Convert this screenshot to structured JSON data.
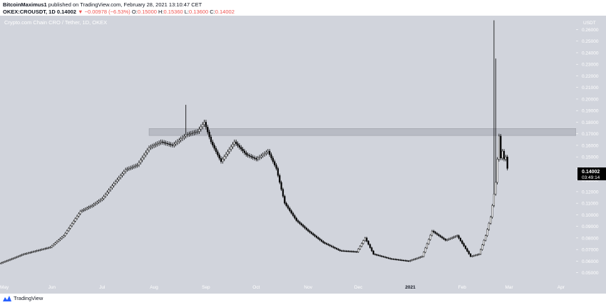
{
  "header": {
    "author": "BitcoinMaximus1",
    "published_text": "published on TradingView.com, February 28, 2021 13:10:47 CET",
    "symbol": "OKEX:CROUSDT, 1D",
    "last": "0.14002",
    "change": "▼ −0.00978 (−6.53%)",
    "o_label": "O:",
    "o_val": "0.15000",
    "h_label": "H:",
    "h_val": "0.15360",
    "l_label": "L:",
    "l_val": "0.13600",
    "c_label": "C:",
    "c_val": "0.14002"
  },
  "footer": {
    "brand": "TradingView"
  },
  "colors": {
    "plot_bg": "#d1d4dc",
    "candle": "#000000",
    "zone": "#b8bbc4",
    "price_label_bg": "#000000",
    "header_red": "#ef5350"
  },
  "chart_data": {
    "type": "candlestick",
    "title": "Crypto.com Chain CRO / Tether, 1D, OKEX",
    "y_unit": "USDT",
    "ylim": [
      0.043,
      0.272
    ],
    "x_start": "2020-05-01",
    "x_end": "2021-04-10",
    "x_ticks": [
      {
        "date": "2020-05-01",
        "label": "May"
      },
      {
        "date": "2020-06-01",
        "label": "Jun"
      },
      {
        "date": "2020-07-01",
        "label": "Jul"
      },
      {
        "date": "2020-08-01",
        "label": "Aug"
      },
      {
        "date": "2020-09-01",
        "label": "Sep"
      },
      {
        "date": "2020-10-01",
        "label": "Oct"
      },
      {
        "date": "2020-11-01",
        "label": "Nov"
      },
      {
        "date": "2020-12-01",
        "label": "Dec"
      },
      {
        "date": "2021-01-01",
        "label": "2021"
      },
      {
        "date": "2021-02-01",
        "label": "Feb"
      },
      {
        "date": "2021-03-01",
        "label": "Mar"
      },
      {
        "date": "2021-04-01",
        "label": "Apr"
      }
    ],
    "y_ticks": [
      "0.05000",
      "0.06000",
      "0.07000",
      "0.08000",
      "0.09000",
      "0.10000",
      "0.11000",
      "0.12000",
      "0.13000",
      "0.14000",
      "0.15000",
      "0.16000",
      "0.17000",
      "0.18000",
      "0.19000",
      "0.20000",
      "0.21000",
      "0.22000",
      "0.23000",
      "0.24000",
      "0.25000",
      "0.26000"
    ],
    "grid": false,
    "zone": {
      "y_low": 0.1685,
      "y_high": 0.1745,
      "x_from": "2020-07-29"
    },
    "last_price": {
      "value": "0.14002",
      "countdown": "03:49:14"
    },
    "series": [
      {
        "values": [
          {
            "date": "2020-05-01",
            "close": 0.058
          },
          {
            "date": "2020-05-15",
            "close": 0.066
          },
          {
            "date": "2020-05-31",
            "close": 0.072
          },
          {
            "date": "2020-06-08",
            "close": 0.082
          },
          {
            "date": "2020-06-18",
            "close": 0.103
          },
          {
            "date": "2020-06-25",
            "close": 0.108
          },
          {
            "date": "2020-07-01",
            "close": 0.114
          },
          {
            "date": "2020-07-08",
            "close": 0.127
          },
          {
            "date": "2020-07-15",
            "close": 0.139
          },
          {
            "date": "2020-07-22",
            "close": 0.143
          },
          {
            "date": "2020-07-29",
            "close": 0.158
          },
          {
            "date": "2020-08-05",
            "close": 0.163
          },
          {
            "date": "2020-08-12",
            "close": 0.16
          },
          {
            "date": "2020-08-20",
            "close": 0.169
          },
          {
            "date": "2020-08-27",
            "close": 0.172
          },
          {
            "date": "2020-08-31",
            "close": 0.18
          },
          {
            "date": "2020-09-04",
            "close": 0.163
          },
          {
            "date": "2020-09-10",
            "close": 0.146
          },
          {
            "date": "2020-09-18",
            "close": 0.163
          },
          {
            "date": "2020-09-25",
            "close": 0.152
          },
          {
            "date": "2020-10-01",
            "close": 0.148
          },
          {
            "date": "2020-10-08",
            "close": 0.155
          },
          {
            "date": "2020-10-13",
            "close": 0.14
          },
          {
            "date": "2020-10-18",
            "close": 0.11
          },
          {
            "date": "2020-10-25",
            "close": 0.095
          },
          {
            "date": "2020-11-01",
            "close": 0.086
          },
          {
            "date": "2020-11-10",
            "close": 0.076
          },
          {
            "date": "2020-11-20",
            "close": 0.069
          },
          {
            "date": "2020-11-30",
            "close": 0.068
          },
          {
            "date": "2020-12-05",
            "close": 0.08
          },
          {
            "date": "2020-12-10",
            "close": 0.066
          },
          {
            "date": "2020-12-20",
            "close": 0.062
          },
          {
            "date": "2020-12-31",
            "close": 0.06
          },
          {
            "date": "2021-01-08",
            "close": 0.064
          },
          {
            "date": "2021-01-14",
            "close": 0.086
          },
          {
            "date": "2021-01-22",
            "close": 0.078
          },
          {
            "date": "2021-01-29",
            "close": 0.082
          },
          {
            "date": "2021-02-06",
            "close": 0.064
          },
          {
            "date": "2021-02-11",
            "close": 0.066
          },
          {
            "date": "2021-02-15",
            "close": 0.082
          },
          {
            "date": "2021-02-18",
            "close": 0.098
          },
          {
            "date": "2021-02-21",
            "close": 0.128
          },
          {
            "date": "2021-02-22",
            "close": 0.148
          },
          {
            "date": "2021-02-23",
            "close": 0.168
          },
          {
            "date": "2021-02-24",
            "close": 0.149
          },
          {
            "date": "2021-02-25",
            "close": 0.155
          },
          {
            "date": "2021-02-26",
            "close": 0.148
          },
          {
            "date": "2021-02-27",
            "close": 0.15
          },
          {
            "date": "2021-02-28",
            "close": 0.14002
          }
        ]
      }
    ]
  }
}
